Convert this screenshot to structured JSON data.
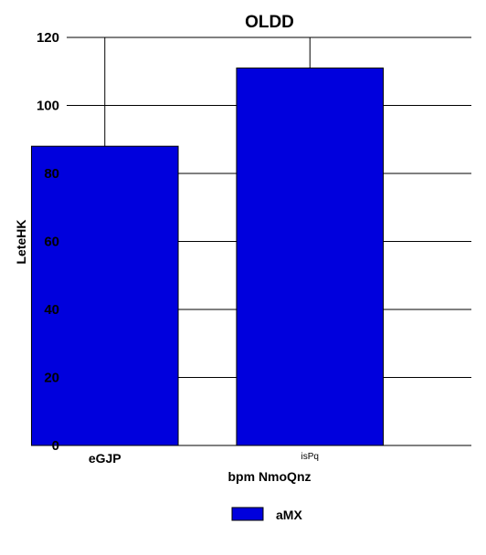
{
  "chart_data": {
    "type": "bar",
    "title": "OLDD",
    "xlabel": "bpm NmoQnz",
    "ylabel": "LeteHK",
    "categories": [
      "eGJP",
      "isPq"
    ],
    "series": [
      {
        "name": "aMX",
        "values": [
          88,
          111
        ],
        "color": "#0000dd"
      }
    ],
    "ylim": [
      0,
      120
    ],
    "yticks": [
      0,
      20,
      40,
      60,
      80,
      100,
      120
    ],
    "grid": true,
    "legend_placement": "bottom-center"
  }
}
